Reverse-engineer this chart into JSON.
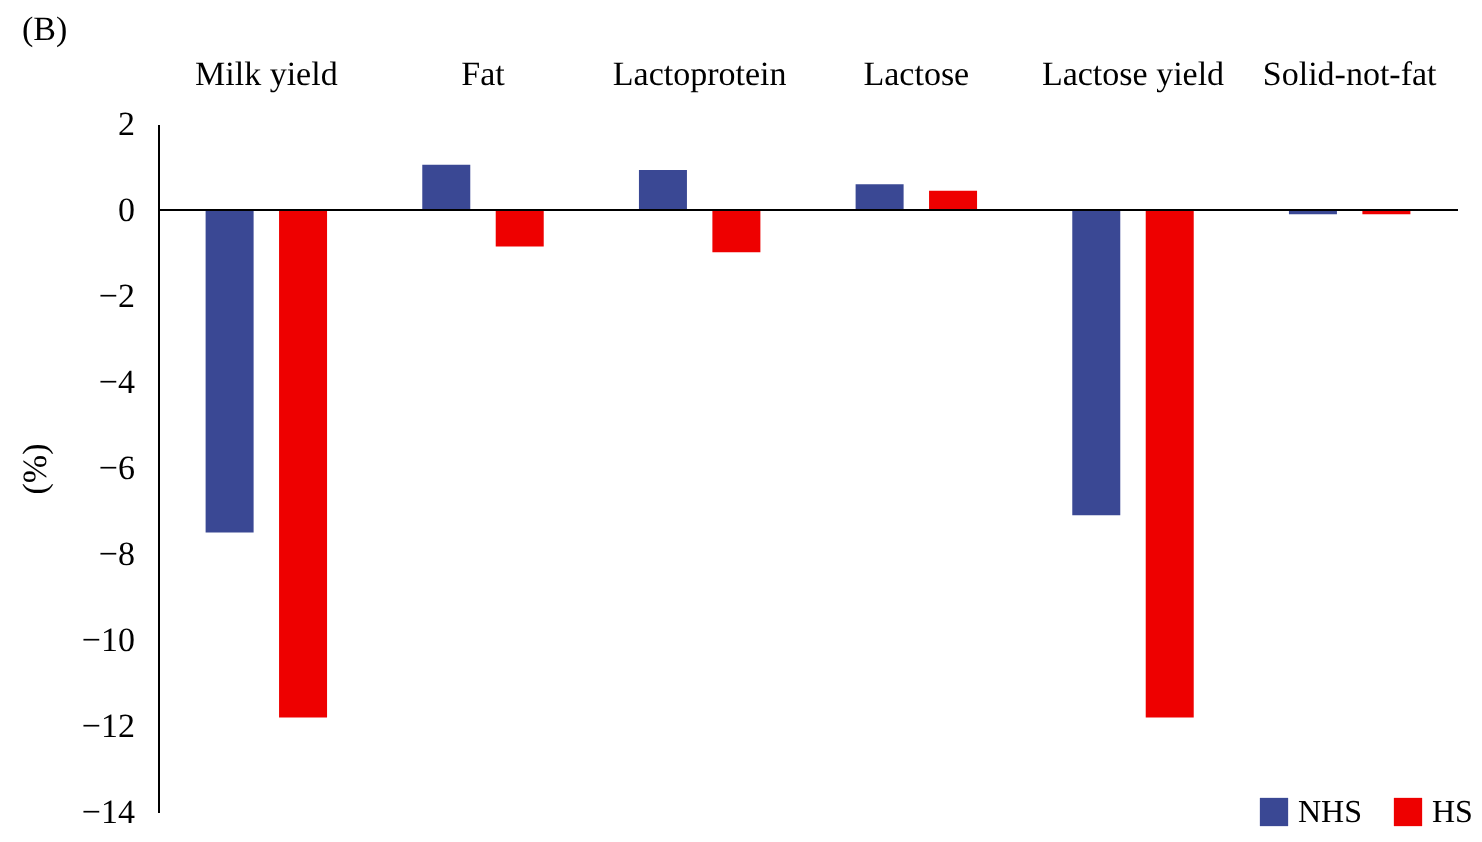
{
  "chart_data": {
    "type": "bar",
    "title": "(B)",
    "ylabel": "(%)",
    "categories": [
      "Milk yield",
      "Fat",
      "Lactoprotein",
      "Lactose",
      "Lactose yield",
      "Solid-not-fat"
    ],
    "series": [
      {
        "name": "NHS",
        "color": "#3a4894",
        "values": [
          -7.5,
          1.05,
          0.93,
          0.6,
          -7.1,
          -0.1
        ]
      },
      {
        "name": "HS",
        "color": "#ee0000",
        "values": [
          -11.8,
          -0.85,
          -0.98,
          0.45,
          -11.8,
          -0.1
        ]
      }
    ],
    "ylim": [
      -14,
      2
    ],
    "yticks": [
      {
        "value": -14,
        "label": "−14"
      },
      {
        "value": -12,
        "label": "−12"
      },
      {
        "value": -10,
        "label": "−10"
      },
      {
        "value": -8,
        "label": "−8"
      },
      {
        "value": -6,
        "label": "−6"
      },
      {
        "value": -4,
        "label": "−4"
      },
      {
        "value": -2,
        "label": "−2"
      },
      0,
      2
    ],
    "legend": "bottom right"
  }
}
